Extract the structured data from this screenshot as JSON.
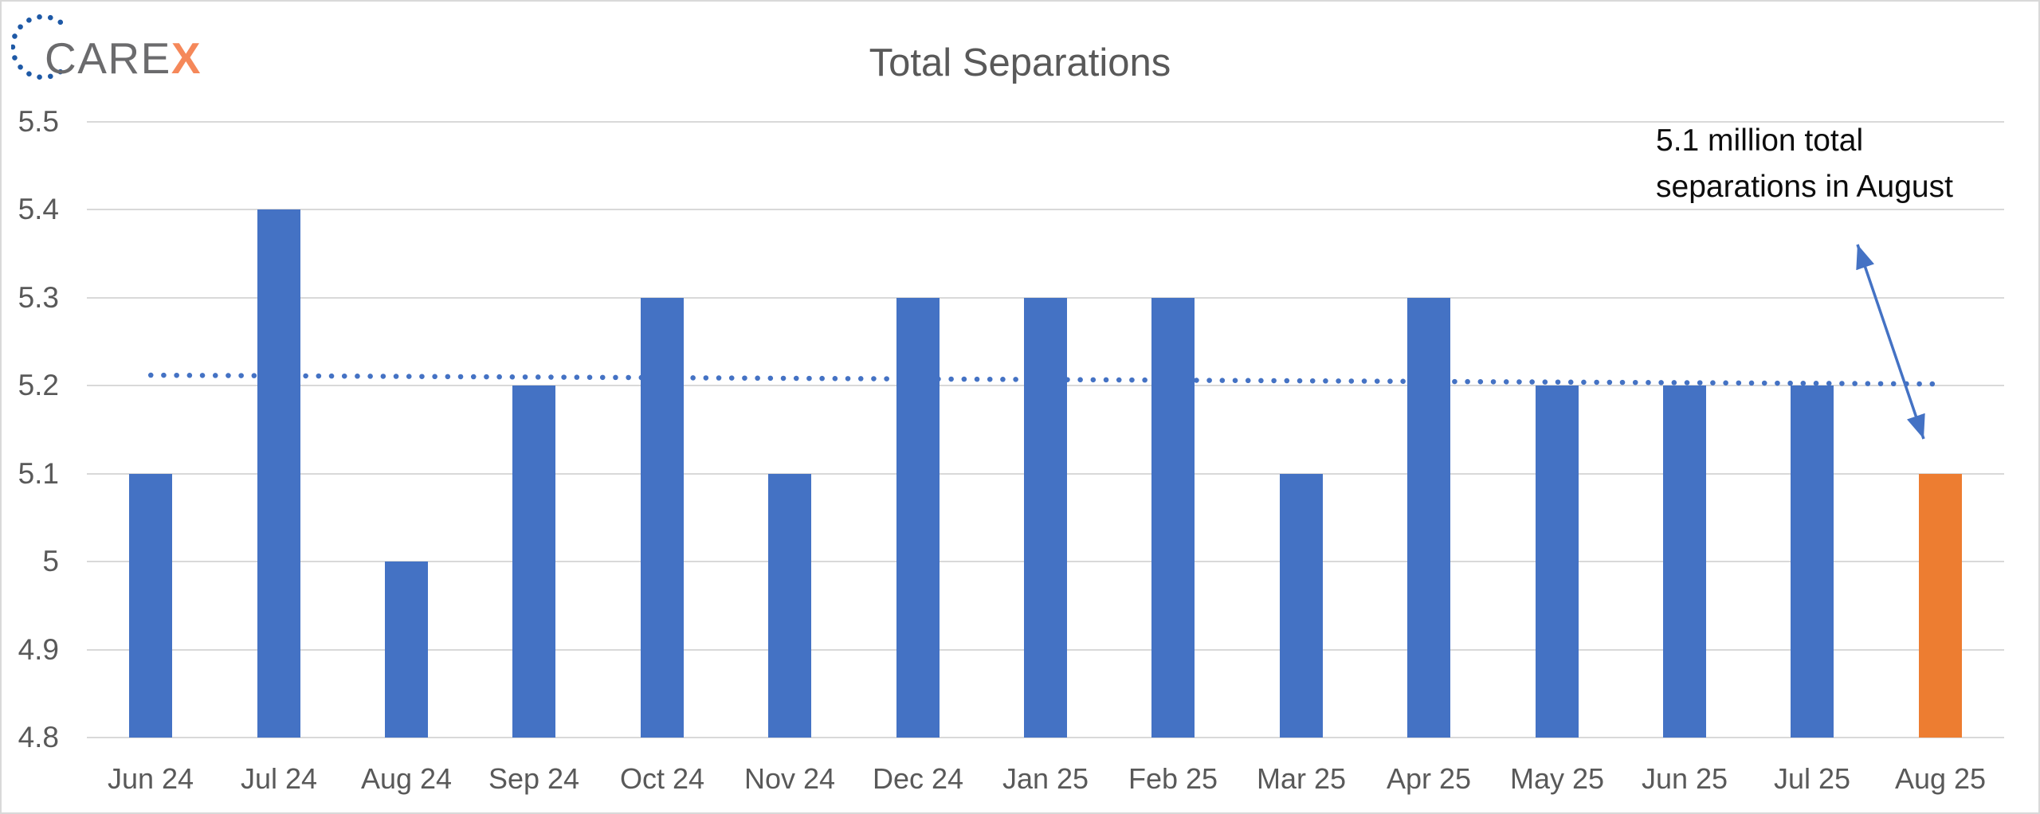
{
  "logo": {
    "text_main": "CARE",
    "text_accent": "X",
    "main_color": "#6B6B6D",
    "accent_color": "#F5885A",
    "dots_color": "#1E59A6"
  },
  "chart_data": {
    "type": "bar",
    "title": "Total Separations",
    "title_color": "#595959",
    "categories": [
      "Jun 24",
      "Jul 24",
      "Aug 24",
      "Sep 24",
      "Oct 24",
      "Nov 24",
      "Dec 24",
      "Jan 25",
      "Feb 25",
      "Mar 25",
      "Apr 25",
      "May 25",
      "Jun 25",
      "Jul 25",
      "Aug 25"
    ],
    "values": [
      5.1,
      5.4,
      5.0,
      5.2,
      5.3,
      5.1,
      5.3,
      5.3,
      5.3,
      5.1,
      5.3,
      5.2,
      5.2,
      5.2,
      5.1
    ],
    "highlight_index": 14,
    "bar_color": "#4472C4",
    "highlight_color": "#ED7D31",
    "axis_label_color": "#595959",
    "gridline_color": "#D9D9D9",
    "grid": true,
    "legend": false,
    "xlabel": "",
    "ylabel": "",
    "ylim": [
      4.8,
      5.5
    ],
    "ytick_labels": [
      "5.5",
      "5.4",
      "5.3",
      "5.2",
      "5.1",
      "5",
      "4.9",
      "4.8"
    ],
    "ytick_values": [
      5.5,
      5.4,
      5.3,
      5.2,
      5.1,
      5.0,
      4.9,
      4.8
    ],
    "trendline": {
      "style": "dotted",
      "color": "#4472C4",
      "start_value": 5.212,
      "end_value": 5.202
    },
    "annotation": {
      "text": "5.1 million total separations in August",
      "text_color": "#0D0D0D",
      "arrow_color": "#4472C4"
    }
  }
}
